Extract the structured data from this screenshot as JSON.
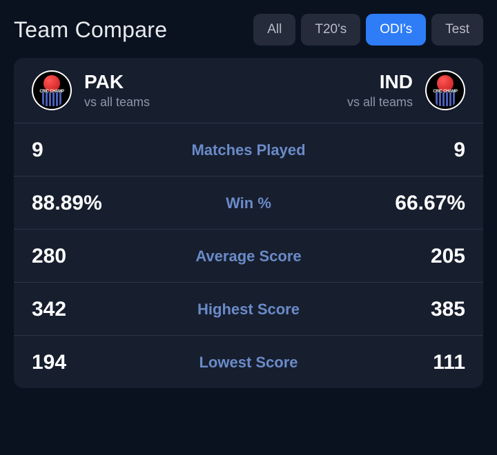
{
  "header": {
    "title": "Team Compare"
  },
  "tabs": {
    "all": "All",
    "t20": "T20's",
    "odi": "ODI's",
    "test": "Test",
    "active": "odi"
  },
  "teamA": {
    "name": "PAK",
    "sub": "vs all teams"
  },
  "teamB": {
    "name": "IND",
    "sub": "vs all teams"
  },
  "stats": {
    "matches": {
      "label": "Matches Played",
      "a": "9",
      "b": "9"
    },
    "win": {
      "label": "Win %",
      "a": "88.89%",
      "b": "66.67%"
    },
    "avg": {
      "label": "Average Score",
      "a": "280",
      "b": "205"
    },
    "high": {
      "label": "Highest Score",
      "a": "342",
      "b": "385"
    },
    "low": {
      "label": "Lowest Score",
      "a": "194",
      "b": "111"
    }
  }
}
